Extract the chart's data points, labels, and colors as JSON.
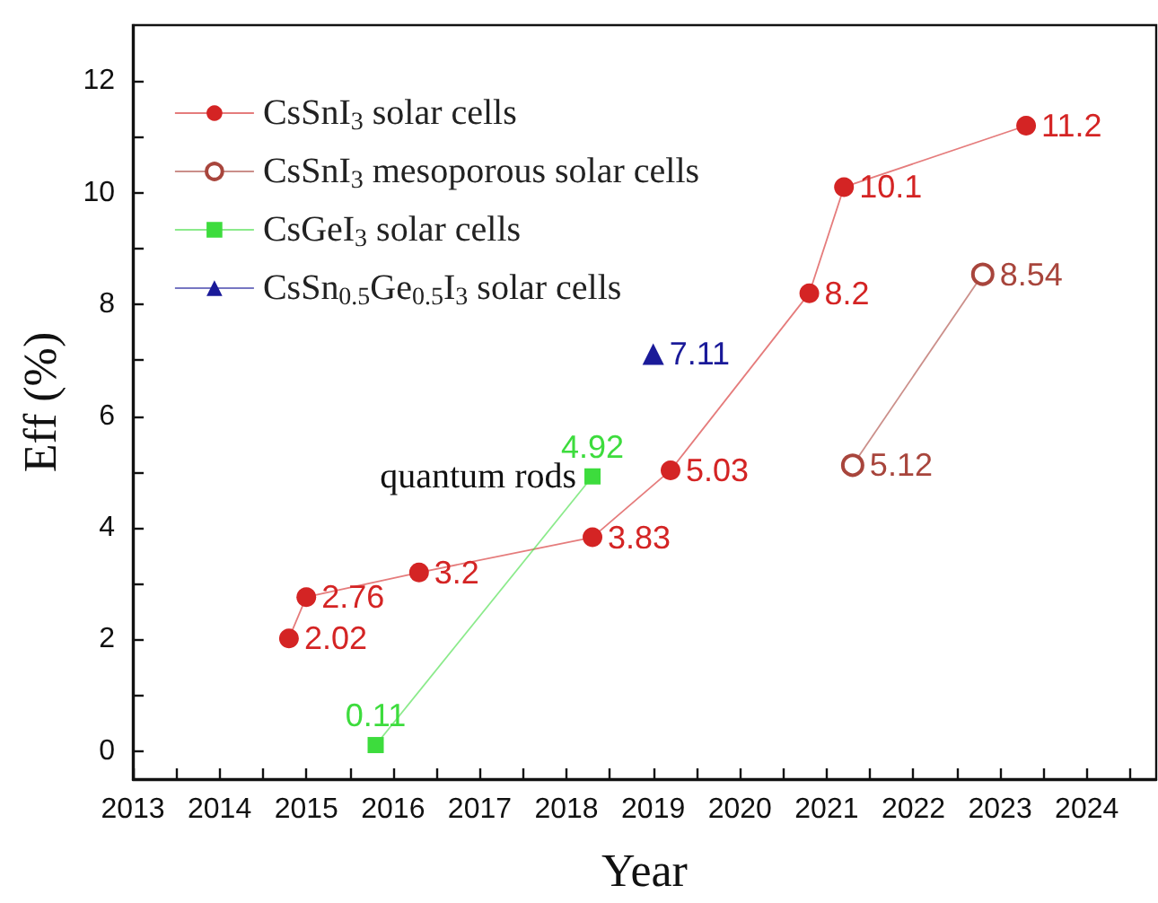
{
  "chart_data": {
    "type": "line",
    "xlabel": "Year",
    "ylabel": "Eff (%)",
    "xlim": [
      2013,
      2024.8
    ],
    "xticks": [
      2013,
      {
        "value": 2013.5,
        "label": null
      },
      2014,
      {
        "value": 2014.5,
        "label": null
      },
      2015,
      {
        "value": 2015.5,
        "label": null
      },
      2016,
      {
        "value": 2016.5,
        "label": null
      },
      2017,
      {
        "value": 2017.5,
        "label": null
      },
      2018,
      {
        "value": 2018.5,
        "label": null
      },
      2019,
      {
        "value": 2019.5,
        "label": null
      },
      2020,
      {
        "value": 2020.5,
        "label": null
      },
      2021,
      {
        "value": 2021.5,
        "label": null
      },
      2022,
      {
        "value": 2022.5,
        "label": null
      },
      2023,
      {
        "value": 2023.5,
        "label": null
      },
      2024,
      {
        "value": 2024.5,
        "label": null
      }
    ],
    "ylim": [
      -0.5,
      13
    ],
    "yticks": [
      0,
      {
        "value": 1,
        "label": null
      },
      2,
      {
        "value": 3,
        "label": null
      },
      4,
      {
        "value": 5,
        "label": null
      },
      6,
      {
        "value": 7,
        "label": null
      },
      8,
      {
        "value": 9,
        "label": null
      },
      10,
      {
        "value": 11,
        "label": null
      },
      12
    ],
    "series": [
      {
        "name": "CsSnI$_{3}$ solar cells",
        "color": "#d42424",
        "marker": "circle",
        "x": [
          2014.8,
          2015.0,
          2016.3,
          2018.3,
          2019.2,
          2020.8,
          2021.2,
          2023.3
        ],
        "values": [
          2.02,
          2.76,
          3.2,
          3.83,
          5.03,
          8.2,
          10.1,
          11.2
        ]
      },
      {
        "name": "CsSnI$_{3}$ mesoporous solar cells",
        "color": "#a8453c",
        "marker": "circle",
        "x": [
          2021.3,
          2022.8
        ],
        "values": [
          5.12,
          8.54
        ]
      },
      {
        "name": "CsGeI$_{3}$ solar cells",
        "color": "#3ddc3d",
        "marker": "square",
        "x": [
          2015.8,
          2018.3
        ],
        "values": [
          0.11,
          4.92
        ]
      },
      {
        "name": "CsSn$_{0.5}$Ge$_{0.5}$I$_{3}$ solar cells",
        "color": "#1a1a99",
        "marker": "triangle",
        "x": [
          2019.0
        ],
        "values": [
          7.11
        ]
      }
    ],
    "annotations": [
      {
        "text": "quantum rods",
        "x": 2018.3,
        "y": 4.92
      }
    ],
    "data_labels": true,
    "legend": "top left",
    "grid": false
  }
}
